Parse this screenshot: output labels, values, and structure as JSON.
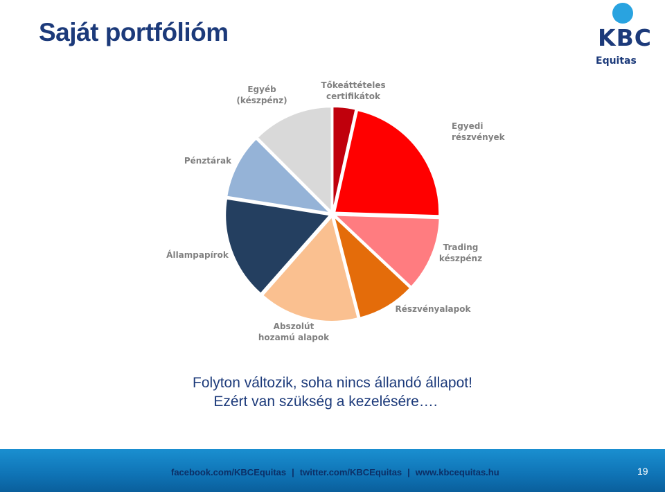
{
  "slide": {
    "title": "Saját portfólióm",
    "caption_line1": "Folyton változik, soha nincs állandó állapot!",
    "caption_line2": "Ezért van szükség a kezelésére…."
  },
  "logo": {
    "wordmark": "KBC",
    "sub": "Equitas"
  },
  "footer": {
    "link1": "facebook.com/KBCEquitas",
    "separator": "|",
    "link2": "twitter.com/KBCEquitas",
    "link3": "www.kbcequitas.hu",
    "page_number": "19"
  },
  "chart_data": {
    "type": "pie",
    "title": "",
    "slices": [
      {
        "label": "Tőkeáttételes certifikátok",
        "lines": [
          "Tőkeáttételes",
          "certifikátok"
        ],
        "value": 3.5,
        "color": "#c0000c"
      },
      {
        "label": "Egyedi részvények",
        "lines": [
          "Egyedi",
          "részvények"
        ],
        "value": 22,
        "color": "#ff0000"
      },
      {
        "label": "Trading készpénz",
        "lines": [
          "Trading",
          "készpénz"
        ],
        "value": 11.5,
        "color": "#ff7c80"
      },
      {
        "label": "Részvényalapok",
        "lines": [
          "Részvényalapok"
        ],
        "value": 9,
        "color": "#e46c0a"
      },
      {
        "label": "Abszolút hozamú alapok",
        "lines": [
          "Abszolút",
          "hozamú alapok"
        ],
        "value": 15.5,
        "color": "#fac090"
      },
      {
        "label": "Állampapírok",
        "lines": [
          "Állampapírok"
        ],
        "value": 16,
        "color": "#243f60"
      },
      {
        "label": "Pénztárak",
        "lines": [
          "Pénztárak"
        ],
        "value": 10,
        "color": "#95b3d7"
      },
      {
        "label": "Egyéb (készpénz)",
        "lines": [
          "Egyéb",
          "(készpénz)"
        ],
        "value": 12.5,
        "color": "#d9d9d9"
      }
    ]
  }
}
